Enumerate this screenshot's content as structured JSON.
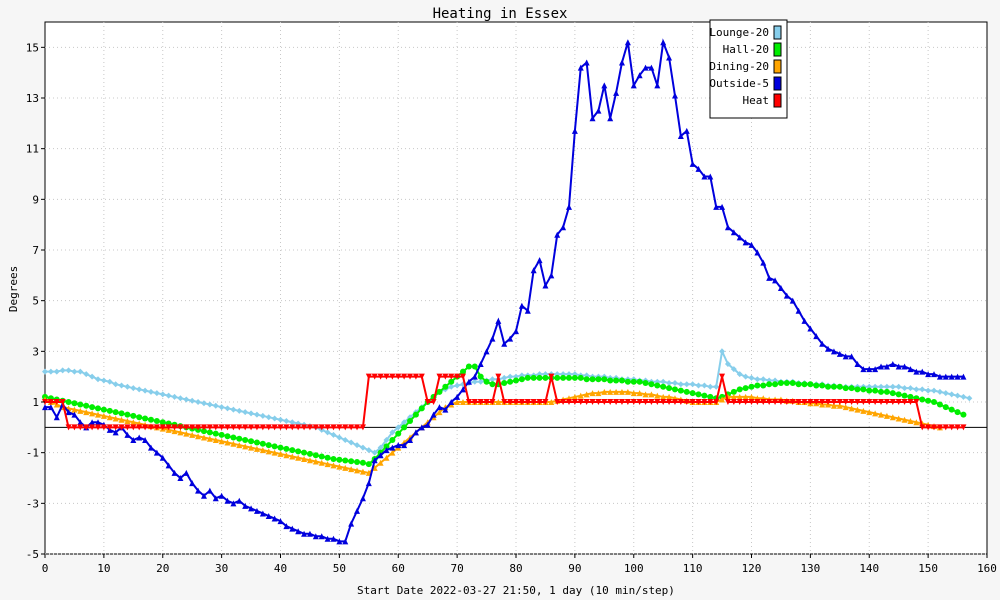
{
  "chart_data": {
    "type": "line",
    "title": "Heating in Essex",
    "xlabel": "Start Date 2022-03-27 21:50, 1 day (10 min/step)",
    "ylabel": "Degrees",
    "xlim": [
      0,
      160
    ],
    "ylim": [
      -5,
      16
    ],
    "xticks": [
      0,
      10,
      20,
      30,
      40,
      50,
      60,
      70,
      80,
      90,
      100,
      110,
      120,
      130,
      140,
      150,
      160
    ],
    "yticks": [
      -5,
      -3,
      -1,
      1,
      3,
      5,
      7,
      9,
      11,
      13,
      15
    ],
    "grid": true,
    "legend_position": "top-right",
    "x_step": 1,
    "series": [
      {
        "name": "Lounge-20",
        "color": "#87ceeb",
        "marker": "diamond",
        "values": [
          2.2,
          2.2,
          2.2,
          2.25,
          2.25,
          2.2,
          2.2,
          2.1,
          2.0,
          1.9,
          1.85,
          1.8,
          1.7,
          1.65,
          1.6,
          1.55,
          1.5,
          1.45,
          1.4,
          1.35,
          1.3,
          1.25,
          1.2,
          1.15,
          1.1,
          1.05,
          1.0,
          0.95,
          0.9,
          0.85,
          0.8,
          0.75,
          0.7,
          0.65,
          0.6,
          0.55,
          0.5,
          0.45,
          0.4,
          0.35,
          0.3,
          0.25,
          0.2,
          0.15,
          0.1,
          0.05,
          0.0,
          -0.1,
          -0.2,
          -0.3,
          -0.4,
          -0.5,
          -0.6,
          -0.7,
          -0.8,
          -0.9,
          -1.0,
          -0.8,
          -0.5,
          -0.2,
          0.0,
          0.2,
          0.4,
          0.6,
          0.8,
          1.0,
          1.2,
          1.4,
          1.5,
          1.6,
          1.65,
          1.7,
          1.75,
          1.8,
          1.8,
          1.85,
          1.9,
          1.9,
          1.95,
          2.0,
          2.0,
          2.05,
          2.05,
          2.05,
          2.1,
          2.1,
          2.1,
          2.1,
          2.1,
          2.1,
          2.1,
          2.05,
          2.05,
          2.0,
          2.0,
          2.0,
          1.95,
          1.95,
          1.9,
          1.9,
          1.9,
          1.85,
          1.85,
          1.8,
          1.8,
          1.8,
          1.75,
          1.75,
          1.7,
          1.7,
          1.7,
          1.65,
          1.65,
          1.6,
          1.6,
          3.0,
          2.5,
          2.3,
          2.1,
          2.0,
          1.95,
          1.9,
          1.9,
          1.85,
          1.85,
          1.8,
          1.8,
          1.8,
          1.75,
          1.75,
          1.7,
          1.7,
          1.7,
          1.65,
          1.65,
          1.6,
          1.6,
          1.6,
          1.6,
          1.6,
          1.6,
          1.6,
          1.6,
          1.6,
          1.6,
          1.6,
          1.55,
          1.55,
          1.5,
          1.5,
          1.45,
          1.45,
          1.4,
          1.35,
          1.3,
          1.25,
          1.2,
          1.15
        ]
      },
      {
        "name": "Hall-20",
        "color": "#00ee00",
        "marker": "circle",
        "values": [
          1.2,
          1.15,
          1.1,
          1.05,
          1.0,
          0.95,
          0.9,
          0.85,
          0.8,
          0.75,
          0.7,
          0.65,
          0.6,
          0.55,
          0.5,
          0.45,
          0.4,
          0.35,
          0.3,
          0.25,
          0.2,
          0.15,
          0.1,
          0.05,
          0.0,
          -0.05,
          -0.1,
          -0.15,
          -0.2,
          -0.25,
          -0.3,
          -0.35,
          -0.4,
          -0.45,
          -0.5,
          -0.55,
          -0.6,
          -0.65,
          -0.7,
          -0.75,
          -0.8,
          -0.85,
          -0.9,
          -0.95,
          -1.0,
          -1.05,
          -1.1,
          -1.15,
          -1.2,
          -1.25,
          -1.28,
          -1.31,
          -1.34,
          -1.37,
          -1.4,
          -1.45,
          -1.25,
          -1.0,
          -0.75,
          -0.5,
          -0.25,
          0.0,
          0.25,
          0.5,
          0.75,
          1.0,
          1.2,
          1.4,
          1.6,
          1.8,
          2.0,
          2.2,
          2.4,
          2.4,
          2.0,
          1.8,
          1.7,
          1.7,
          1.75,
          1.8,
          1.85,
          1.9,
          1.95,
          1.95,
          1.95,
          1.95,
          1.95,
          1.95,
          1.95,
          1.95,
          1.95,
          1.95,
          1.9,
          1.9,
          1.9,
          1.9,
          1.85,
          1.85,
          1.85,
          1.8,
          1.8,
          1.8,
          1.75,
          1.7,
          1.65,
          1.6,
          1.55,
          1.5,
          1.45,
          1.4,
          1.35,
          1.3,
          1.25,
          1.2,
          1.15,
          1.2,
          1.3,
          1.4,
          1.5,
          1.55,
          1.6,
          1.65,
          1.65,
          1.7,
          1.7,
          1.75,
          1.75,
          1.75,
          1.7,
          1.7,
          1.7,
          1.65,
          1.65,
          1.6,
          1.6,
          1.6,
          1.55,
          1.55,
          1.5,
          1.5,
          1.45,
          1.45,
          1.4,
          1.4,
          1.35,
          1.3,
          1.25,
          1.2,
          1.15,
          1.1,
          1.05,
          1.0,
          0.9,
          0.8,
          0.7,
          0.6,
          0.5
        ]
      },
      {
        "name": "Dining-20",
        "color": "#ffa500",
        "marker": "triangle",
        "values": [
          1.1,
          1.0,
          0.9,
          0.8,
          0.75,
          0.7,
          0.65,
          0.6,
          0.55,
          0.5,
          0.45,
          0.4,
          0.35,
          0.3,
          0.25,
          0.2,
          0.15,
          0.1,
          0.05,
          0.0,
          -0.05,
          -0.1,
          -0.15,
          -0.2,
          -0.25,
          -0.3,
          -0.35,
          -0.4,
          -0.45,
          -0.5,
          -0.55,
          -0.6,
          -0.65,
          -0.7,
          -0.75,
          -0.8,
          -0.85,
          -0.9,
          -0.95,
          -1.0,
          -1.05,
          -1.1,
          -1.15,
          -1.2,
          -1.25,
          -1.3,
          -1.35,
          -1.4,
          -1.45,
          -1.5,
          -1.55,
          -1.6,
          -1.65,
          -1.7,
          -1.75,
          -1.8,
          -1.6,
          -1.4,
          -1.2,
          -1.0,
          -0.8,
          -0.6,
          -0.4,
          -0.2,
          0.0,
          0.2,
          0.4,
          0.6,
          0.8,
          0.9,
          1.0,
          1.0,
          1.0,
          1.0,
          1.0,
          1.0,
          1.0,
          1.0,
          1.0,
          1.0,
          1.0,
          1.0,
          1.0,
          1.0,
          1.0,
          1.0,
          1.0,
          1.05,
          1.1,
          1.15,
          1.2,
          1.25,
          1.3,
          1.35,
          1.35,
          1.4,
          1.4,
          1.4,
          1.4,
          1.4,
          1.35,
          1.35,
          1.3,
          1.3,
          1.25,
          1.2,
          1.2,
          1.15,
          1.1,
          1.05,
          1.0,
          1.0,
          1.0,
          1.0,
          1.0,
          1.1,
          1.2,
          1.2,
          1.2,
          1.2,
          1.2,
          1.15,
          1.15,
          1.1,
          1.1,
          1.1,
          1.05,
          1.05,
          1.0,
          1.0,
          0.95,
          0.95,
          0.9,
          0.9,
          0.85,
          0.85,
          0.8,
          0.75,
          0.7,
          0.65,
          0.6,
          0.55,
          0.5,
          0.45,
          0.4,
          0.35,
          0.3,
          0.25,
          0.2,
          0.15,
          0.1,
          0.05,
          0.0
        ]
      },
      {
        "name": "Outside-5",
        "color": "#0000dd",
        "marker": "triangle",
        "values": [
          0.8,
          0.8,
          0.4,
          0.9,
          0.6,
          0.5,
          0.2,
          0.0,
          0.2,
          0.2,
          0.1,
          -0.1,
          -0.2,
          0.0,
          -0.3,
          -0.5,
          -0.4,
          -0.5,
          -0.8,
          -1.0,
          -1.2,
          -1.5,
          -1.8,
          -2.0,
          -1.8,
          -2.2,
          -2.5,
          -2.7,
          -2.5,
          -2.8,
          -2.7,
          -2.9,
          -3.0,
          -2.9,
          -3.1,
          -3.2,
          -3.3,
          -3.4,
          -3.5,
          -3.6,
          -3.7,
          -3.9,
          -4.0,
          -4.1,
          -4.2,
          -4.2,
          -4.3,
          -4.3,
          -4.4,
          -4.4,
          -4.5,
          -4.5,
          -3.8,
          -3.3,
          -2.8,
          -2.2,
          -1.3,
          -1.1,
          -0.9,
          -0.8,
          -0.7,
          -0.7,
          -0.5,
          -0.2,
          0.0,
          0.1,
          0.5,
          0.8,
          0.7,
          1.0,
          1.2,
          1.5,
          1.8,
          2.0,
          2.5,
          3.0,
          3.5,
          4.2,
          3.3,
          3.5,
          3.8,
          4.8,
          4.6,
          6.2,
          6.6,
          5.6,
          6.0,
          7.6,
          7.9,
          8.7,
          11.7,
          14.2,
          14.4,
          12.2,
          12.5,
          13.5,
          12.2,
          13.2,
          14.4,
          15.2,
          13.5,
          13.9,
          14.2,
          14.2,
          13.5,
          15.2,
          14.6,
          13.1,
          11.5,
          11.7,
          10.4,
          10.2,
          9.9,
          9.9,
          8.7,
          8.7,
          7.9,
          7.7,
          7.5,
          7.3,
          7.2,
          6.9,
          6.5,
          5.9,
          5.8,
          5.5,
          5.2,
          5.0,
          4.6,
          4.2,
          3.9,
          3.6,
          3.3,
          3.1,
          3.0,
          2.9,
          2.8,
          2.8,
          2.5,
          2.3,
          2.3,
          2.3,
          2.4,
          2.4,
          2.5,
          2.4,
          2.4,
          2.3,
          2.2,
          2.2,
          2.1,
          2.1,
          2.0,
          2.0,
          2.0,
          2.0,
          2.0
        ]
      },
      {
        "name": "Heat",
        "color": "#ff0000",
        "marker": "triangle-down",
        "values": [
          1,
          1,
          1,
          1,
          0,
          0,
          0,
          0,
          0,
          0,
          0,
          0,
          0,
          0,
          0,
          0,
          0,
          0,
          0,
          0,
          0,
          0,
          0,
          0,
          0,
          0,
          0,
          0,
          0,
          0,
          0,
          0,
          0,
          0,
          0,
          0,
          0,
          0,
          0,
          0,
          0,
          0,
          0,
          0,
          0,
          0,
          0,
          0,
          0,
          0,
          0,
          0,
          0,
          0,
          0,
          2,
          2,
          2,
          2,
          2,
          2,
          2,
          2,
          2,
          2,
          1,
          1,
          2,
          2,
          2,
          2,
          2,
          1,
          1,
          1,
          1,
          1,
          2,
          1,
          1,
          1,
          1,
          1,
          1,
          1,
          1,
          2,
          1,
          1,
          1,
          1,
          1,
          1,
          1,
          1,
          1,
          1,
          1,
          1,
          1,
          1,
          1,
          1,
          1,
          1,
          1,
          1,
          1,
          1,
          1,
          1,
          1,
          1,
          1,
          1,
          2,
          1,
          1,
          1,
          1,
          1,
          1,
          1,
          1,
          1,
          1,
          1,
          1,
          1,
          1,
          1,
          1,
          1,
          1,
          1,
          1,
          1,
          1,
          1,
          1,
          1,
          1,
          1,
          1,
          1,
          1,
          1,
          1,
          1,
          0,
          0,
          0,
          0,
          0,
          0,
          0,
          0
        ]
      }
    ]
  }
}
